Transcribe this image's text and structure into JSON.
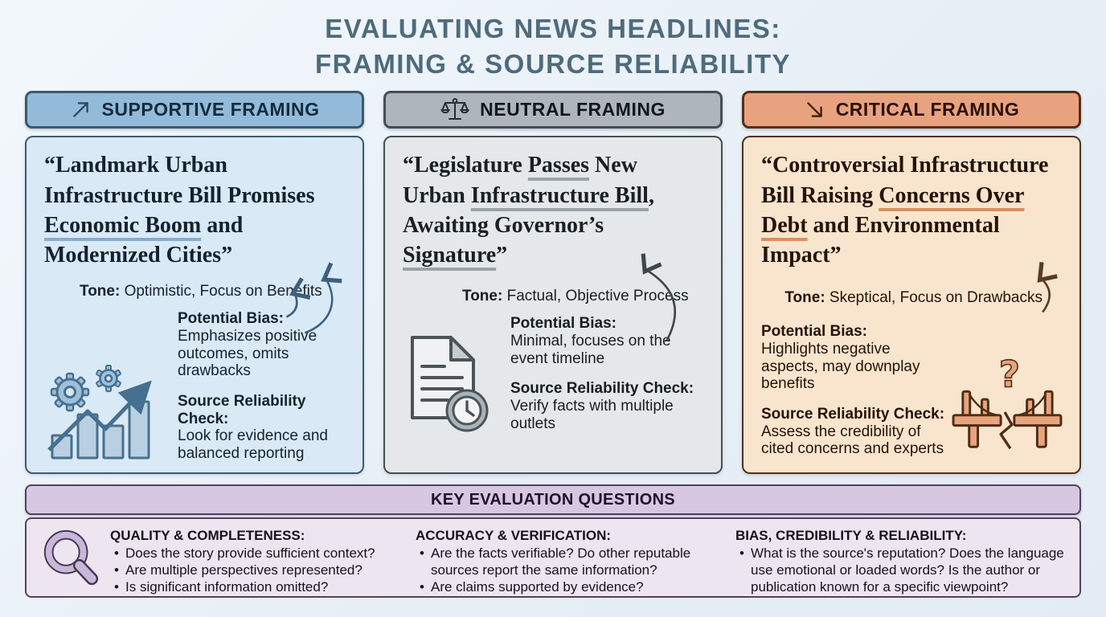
{
  "page": {
    "background": "#eaf1f8"
  },
  "title": {
    "line1": "EVALUATING NEWS HEADLINES:",
    "line2": "FRAMING & SOURCE RELIABILITY",
    "color": "#4e6b7c"
  },
  "columns": [
    {
      "id": "supportive",
      "accent": "#93bad8",
      "header": {
        "label": "SUPPORTIVE FRAMING",
        "icon": "arrow-up-right-icon"
      },
      "headline": [
        {
          "text": "“Landmark Urban Infrastructure Bill Promises ",
          "underline": false
        },
        {
          "text": "Economic Boom",
          "underline": true
        },
        {
          "text": " and Modernized Cities”",
          "underline": false
        }
      ],
      "tone_label": "Tone:",
      "tone_text": " Optimistic, Focus on Benefits",
      "bias_label": "Potential Bias:",
      "bias_text": "Emphasizes positive outcomes, omits drawbacks",
      "check_label": "Source Reliability Check:",
      "check_text": "Look for evidence and balanced reporting",
      "icon": "gears-growth-chart-icon"
    },
    {
      "id": "neutral",
      "accent": "#aeb6bb",
      "header": {
        "label": "NEUTRAL FRAMING",
        "icon": "balance-scale-icon"
      },
      "headline": [
        {
          "text": "“Legislature ",
          "underline": false
        },
        {
          "text": "Passes",
          "underline": true
        },
        {
          "text": " New Urban ",
          "underline": false
        },
        {
          "text": "Infrastructure Bill",
          "underline": true
        },
        {
          "text": ", Awaiting Governor’s ",
          "underline": false
        },
        {
          "text": "Signature",
          "underline": true
        },
        {
          "text": "”",
          "underline": false
        }
      ],
      "tone_label": "Tone:",
      "tone_text": " Factual, Objective Process",
      "bias_label": "Potential Bias:",
      "bias_text": "Minimal, focuses on the event timeline",
      "check_label": "Source Reliability Check:",
      "check_text": "Verify facts with multiple outlets",
      "icon": "document-clock-icon"
    },
    {
      "id": "critical",
      "accent": "#e9a27f",
      "header": {
        "label": "CRITICAL FRAMING",
        "icon": "arrow-down-right-icon"
      },
      "headline": [
        {
          "text": "“Controversial Infrastructure Bill Raising ",
          "underline": false
        },
        {
          "text": "Concerns Over Debt",
          "underline": true
        },
        {
          "text": " and Environmental Impact”",
          "underline": false
        }
      ],
      "tone_label": "Tone:",
      "tone_text": " Skeptical, Focus on Drawbacks",
      "bias_label": "Potential Bias:",
      "bias_text": "Highlights negative aspects, may downplay benefits",
      "check_label": "Source Reliability Check:",
      "check_text": "Assess the credibility of cited concerns and experts",
      "icon": "broken-bridge-question-icon"
    }
  ],
  "evaluation": {
    "header": "KEY EVALUATION QUESTIONS",
    "icon": "magnifier-icon",
    "accent": "#d7c7e3",
    "groups": [
      {
        "title": "QUALITY & COMPLETENESS:",
        "bullets": [
          "Does the story provide sufficient context?",
          "Are multiple perspectives represented?",
          "Is significant information omitted?"
        ]
      },
      {
        "title": "ACCURACY & VERIFICATION:",
        "bullets": [
          "Are the facts verifiable? Do other reputable sources report the same information?",
          "Are claims supported by evidence?"
        ]
      },
      {
        "title": "BIAS, CREDIBILITY & RELIABILITY:",
        "bullets": [
          "What is the source's reputation? Does the language use emotional or loaded words? Is the author or publication known for a specific viewpoint?"
        ]
      }
    ]
  }
}
